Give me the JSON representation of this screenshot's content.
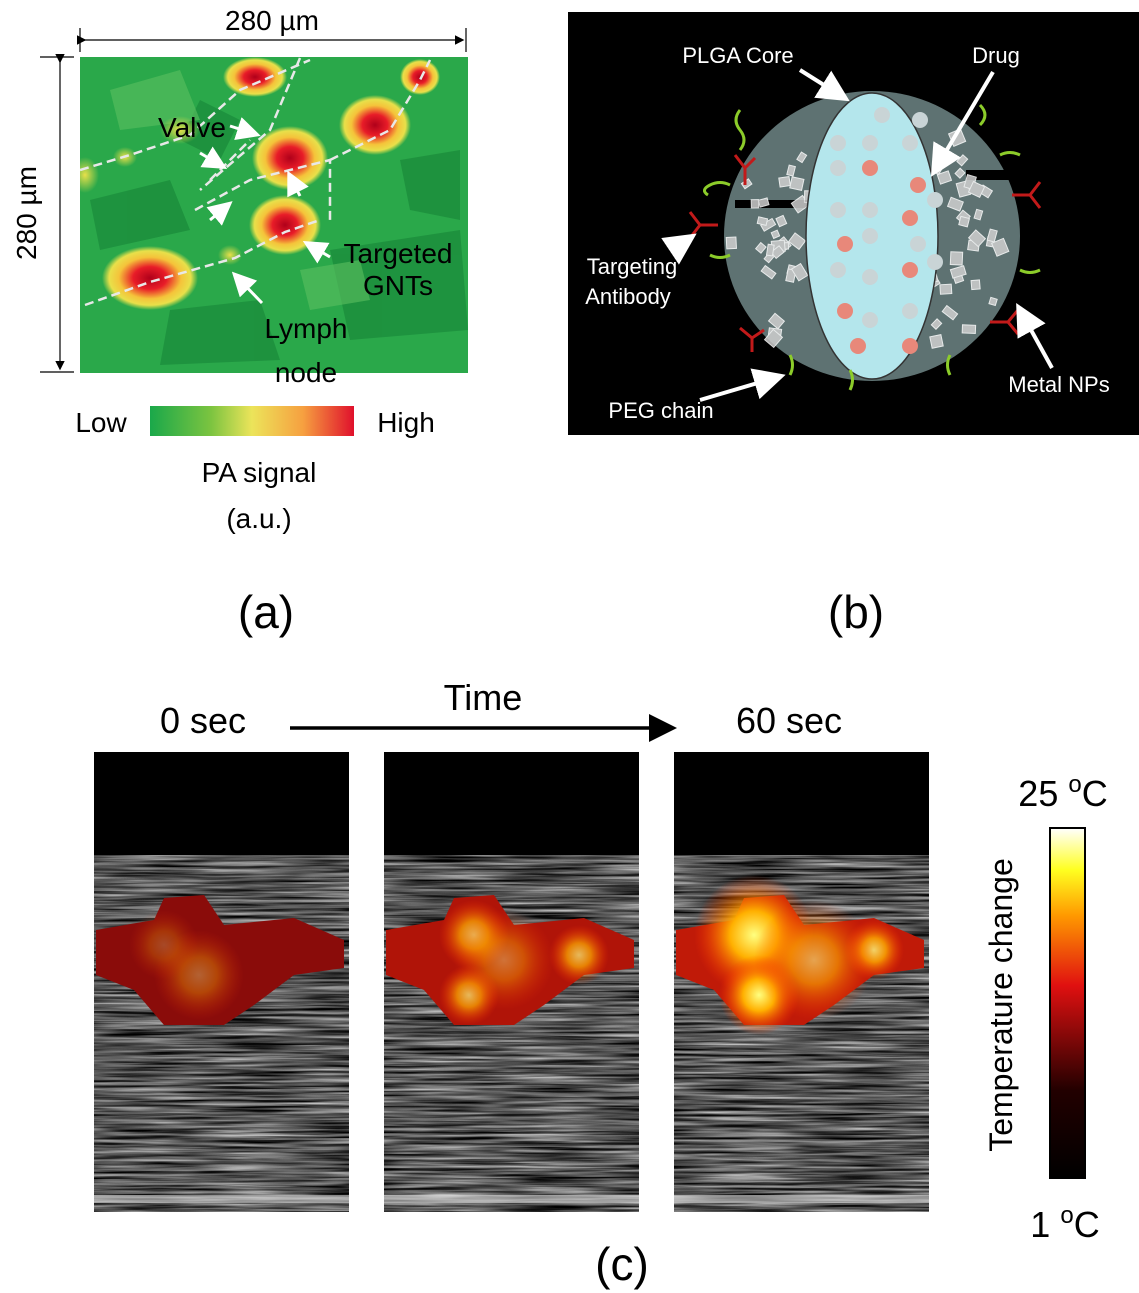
{
  "panel_a": {
    "width_label": "280 µm",
    "height_label": "280 µm",
    "annotations": {
      "valve": "Valve",
      "targeted": [
        "Targeted",
        "GNTs"
      ],
      "lymph": [
        "Lymph",
        "node"
      ]
    },
    "colorbar": {
      "low": "Low",
      "high": "High",
      "title": [
        "PA signal",
        "(a.u.)"
      ]
    },
    "caption": "(a)"
  },
  "panel_b": {
    "labels": {
      "core": "PLGA Core",
      "drug": "Drug",
      "antibody": [
        "Targeting",
        "Antibody"
      ],
      "peg": "PEG chain",
      "metal": "Metal NPs"
    },
    "caption": "(b)"
  },
  "panel_c": {
    "start": "0 sec",
    "axis": "Time",
    "end": "60 sec",
    "colorbar": {
      "title": "Temperature change",
      "max": {
        "number": "25 ",
        "sup": "o",
        "unit": "C"
      },
      "min": {
        "number": "1 ",
        "sup": "o",
        "unit": "C"
      }
    },
    "caption": "(c)"
  }
}
